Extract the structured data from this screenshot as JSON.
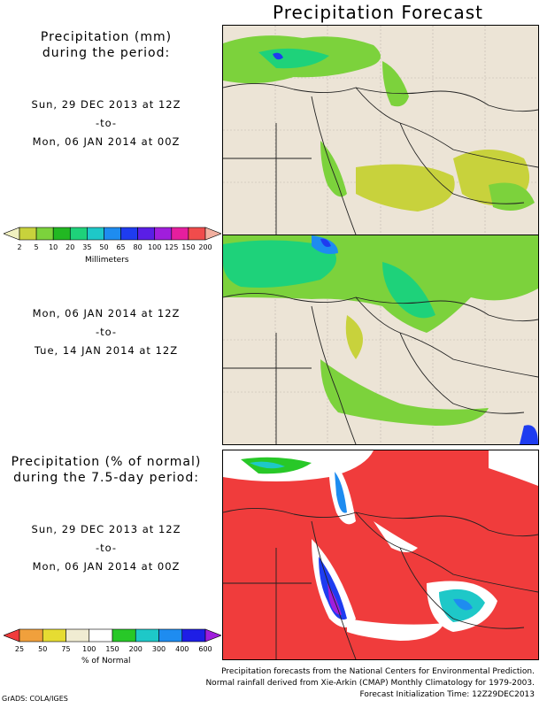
{
  "title": "Precipitation Forecast",
  "panel1": {
    "heading_line1": "Precipitation (mm)",
    "heading_line2": "during the period:",
    "start": "Sun, 29 DEC 2013 at 12Z",
    "sep": "-to-",
    "end": "Mon, 06 JAN 2014 at 00Z"
  },
  "mm_scale": {
    "ticks": [
      "2",
      "5",
      "10",
      "20",
      "35",
      "50",
      "65",
      "80",
      "100",
      "125",
      "150",
      "200"
    ],
    "colors": [
      "#f0f0c0",
      "#c8d23c",
      "#7cd23c",
      "#22b822",
      "#1ed27a",
      "#1ec8c8",
      "#1e8cf0",
      "#1e3cf0",
      "#5a1ee6",
      "#a01edc",
      "#e61e9e",
      "#f04c4c",
      "#f2b0a0"
    ],
    "unit": "Millimeters"
  },
  "panel2": {
    "start": "Mon, 06 JAN 2014 at 12Z",
    "sep": "-to-",
    "end": "Tue, 14 JAN 2014 at 12Z"
  },
  "panel3": {
    "heading_line1": "Precipitation (% of normal)",
    "heading_line2": "during the 7.5-day period:",
    "start": "Sun, 29 DEC 2013 at 12Z",
    "sep": "-to-",
    "end": "Mon, 06 JAN 2014 at 00Z"
  },
  "pct_scale": {
    "ticks": [
      "25",
      "50",
      "75",
      "100",
      "150",
      "200",
      "300",
      "400",
      "600"
    ],
    "colors": [
      "#f03c3c",
      "#f0a03c",
      "#e6dc32",
      "#f0ecd2",
      "#ffffff",
      "#28c828",
      "#1ec8c8",
      "#1e8cf0",
      "#1e1ee6",
      "#a01edc"
    ],
    "unit": "% of Normal"
  },
  "footer": {
    "line1": "Precipitation forecasts from the National Centers for Environmental Prediction.",
    "line2": "Normal rainfall derived from Xie-Arkin (CMAP) Monthly Climatology for 1979-2003.",
    "line3": "Forecast Initialization Time: 12Z29DEC2013"
  },
  "credit": "GrADS: COLA/IGES"
}
